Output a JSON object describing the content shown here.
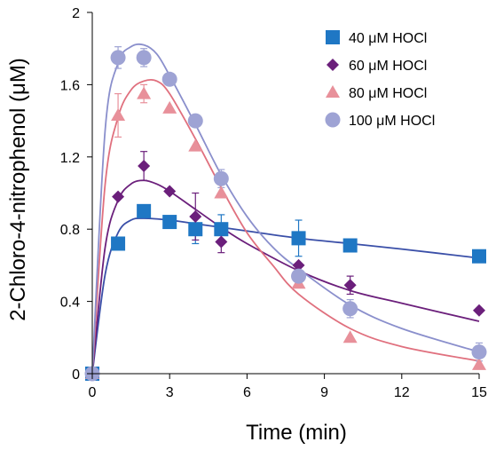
{
  "chart_data": {
    "type": "scatter",
    "xlabel": "Time (min)",
    "ylabel": "2-Chloro-4-nitrophenol (μM)",
    "xlim": [
      0,
      15
    ],
    "ylim": [
      0,
      2
    ],
    "x_ticks": [
      0,
      3,
      6,
      9,
      12,
      15
    ],
    "y_ticks": [
      0,
      0.4,
      0.8,
      1.2,
      1.6,
      2
    ],
    "y_tick_labels": [
      "0",
      "0.4",
      "0.8",
      "1.2",
      "1.6",
      "2"
    ],
    "grid": false,
    "legend_position": "top-right",
    "series": [
      {
        "name": "40 μM HOCl",
        "marker": "square",
        "color": "#1f77c4",
        "line_color": "#3a4fa8",
        "x": [
          0,
          1,
          2,
          3,
          4,
          5,
          8,
          10,
          15
        ],
        "y": [
          0,
          0.72,
          0.9,
          0.84,
          0.8,
          0.8,
          0.75,
          0.71,
          0.65
        ],
        "error": [
          0,
          0,
          0,
          0,
          0.08,
          0.08,
          0.1,
          0,
          0
        ],
        "fit": [
          [
            0,
            0
          ],
          [
            0.5,
            0.55
          ],
          [
            1,
            0.78
          ],
          [
            1.5,
            0.85
          ],
          [
            2,
            0.86
          ],
          [
            3,
            0.85
          ],
          [
            4,
            0.83
          ],
          [
            5,
            0.81
          ],
          [
            6,
            0.79
          ],
          [
            8,
            0.75
          ],
          [
            10,
            0.72
          ],
          [
            12,
            0.69
          ],
          [
            15,
            0.64
          ]
        ]
      },
      {
        "name": "60 μM HOCl",
        "marker": "diamond",
        "color": "#6b1f7b",
        "line_color": "#6b1f7b",
        "x": [
          0,
          1,
          2,
          3,
          4,
          5,
          8,
          10,
          15
        ],
        "y": [
          0,
          0.98,
          1.15,
          1.01,
          0.87,
          0.73,
          0.6,
          0.49,
          0.35
        ],
        "error": [
          0,
          0,
          0.08,
          0,
          0.13,
          0.06,
          0,
          0.05,
          0
        ],
        "fit": [
          [
            0,
            0
          ],
          [
            0.5,
            0.7
          ],
          [
            1,
            0.96
          ],
          [
            1.5,
            1.05
          ],
          [
            2,
            1.07
          ],
          [
            2.5,
            1.05
          ],
          [
            3,
            1.01
          ],
          [
            4,
            0.91
          ],
          [
            5,
            0.81
          ],
          [
            6,
            0.72
          ],
          [
            8,
            0.57
          ],
          [
            10,
            0.46
          ],
          [
            12,
            0.39
          ],
          [
            15,
            0.29
          ]
        ]
      },
      {
        "name": "80 μM HOCl",
        "marker": "triangle",
        "color": "#e8909a",
        "line_color": "#e0707e",
        "x": [
          0,
          1,
          2,
          3,
          4,
          5,
          8,
          10,
          15
        ],
        "y": [
          0,
          1.43,
          1.55,
          1.47,
          1.26,
          1.0,
          0.5,
          0.2,
          0.05
        ],
        "error": [
          0,
          0.12,
          0.05,
          0,
          0,
          0,
          0,
          0,
          0
        ],
        "fit": [
          [
            0,
            0
          ],
          [
            0.5,
            1.05
          ],
          [
            1,
            1.42
          ],
          [
            1.5,
            1.57
          ],
          [
            2,
            1.62
          ],
          [
            2.5,
            1.62
          ],
          [
            3,
            1.55
          ],
          [
            4,
            1.3
          ],
          [
            5,
            1.03
          ],
          [
            6,
            0.78
          ],
          [
            7,
            0.6
          ],
          [
            8,
            0.44
          ],
          [
            10,
            0.25
          ],
          [
            12,
            0.15
          ],
          [
            15,
            0.07
          ]
        ]
      },
      {
        "name": "100 μM HOCl",
        "marker": "circle",
        "color": "#9ea3d4",
        "line_color": "#8a8fcc",
        "x": [
          0,
          1,
          2,
          3,
          4,
          5,
          8,
          10,
          15
        ],
        "y": [
          0,
          1.75,
          1.75,
          1.63,
          1.4,
          1.08,
          0.54,
          0.36,
          0.12
        ],
        "error": [
          0,
          0.06,
          0.05,
          0,
          0,
          0.05,
          0,
          0.05,
          0.05
        ],
        "fit": [
          [
            0,
            0
          ],
          [
            0.5,
            1.35
          ],
          [
            1,
            1.72
          ],
          [
            1.5,
            1.81
          ],
          [
            2,
            1.82
          ],
          [
            2.5,
            1.77
          ],
          [
            3,
            1.65
          ],
          [
            4,
            1.38
          ],
          [
            5,
            1.1
          ],
          [
            6,
            0.87
          ],
          [
            7,
            0.7
          ],
          [
            8,
            0.58
          ],
          [
            10,
            0.38
          ],
          [
            12,
            0.25
          ],
          [
            15,
            0.12
          ]
        ]
      }
    ]
  }
}
